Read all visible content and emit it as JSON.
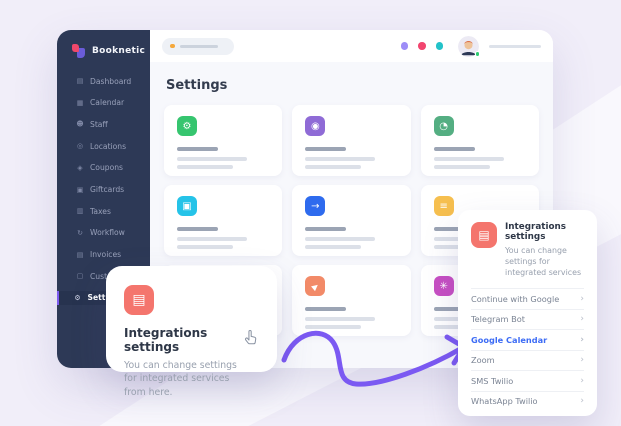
{
  "brand": {
    "name": "Booknetic"
  },
  "sidebar": {
    "items": [
      {
        "label": "Dashboard",
        "icon": "dashboard-icon",
        "glyph": "▤"
      },
      {
        "label": "Calendar",
        "icon": "calendar-icon",
        "glyph": "▦"
      },
      {
        "label": "Staff",
        "icon": "staff-icon",
        "glyph": "☻"
      },
      {
        "label": "Locations",
        "icon": "location-pin-icon",
        "glyph": "◎"
      },
      {
        "label": "Coupons",
        "icon": "coupon-icon",
        "glyph": "◈"
      },
      {
        "label": "Giftcards",
        "icon": "giftcard-icon",
        "glyph": "▣"
      },
      {
        "label": "Taxes",
        "icon": "taxes-icon",
        "glyph": "▥"
      },
      {
        "label": "Workflow",
        "icon": "workflow-icon",
        "glyph": "↻"
      },
      {
        "label": "Invoices",
        "icon": "invoice-icon",
        "glyph": "▤"
      },
      {
        "label": "Custom Forms",
        "icon": "custom-forms-icon",
        "glyph": "▢"
      },
      {
        "label": "Settings",
        "icon": "gear-icon",
        "glyph": "⚙",
        "active": true
      }
    ]
  },
  "topbar": {
    "pill_dot_color": "#f5a83c",
    "window_dots": [
      {
        "name": "dot-purple",
        "color": "#9d8df7"
      },
      {
        "name": "dot-pink",
        "color": "#f2456f"
      },
      {
        "name": "dot-teal",
        "color": "#23c2c9"
      }
    ],
    "avatar_status_color": "#2ecc71"
  },
  "page": {
    "title": "Settings"
  },
  "cards": [
    {
      "icon": "gear-icon",
      "glyph": "⚙",
      "color": "#36c56f"
    },
    {
      "icon": "key-icon",
      "glyph": "◉",
      "color": "#8f6bd6"
    },
    {
      "icon": "clock-icon",
      "glyph": "◔",
      "color": "#54ae82"
    },
    {
      "icon": "payment-card-icon",
      "glyph": "▣",
      "color": "#25c3e8"
    },
    {
      "icon": "arrow-right-icon",
      "glyph": "→",
      "color": "#2e6bee"
    },
    {
      "icon": "menu-lines-icon",
      "glyph": "≡",
      "color": "#f6bf4f"
    },
    {
      "icon": null,
      "glyph": null,
      "color": null,
      "hidden": true
    },
    {
      "icon": "send-icon",
      "glyph": "▶",
      "color": "#f28a68",
      "rotated": true
    },
    {
      "icon": "asterisk-icon",
      "glyph": "✳",
      "color": "#c74fc3"
    }
  ],
  "tooltip": {
    "icon": "document-icon",
    "title": "Integrations settings",
    "description": "You can change settings for integrated services from here."
  },
  "popup": {
    "icon": "document-icon",
    "title": "Integrations settings",
    "subtitle": "You can change settings for integrated services",
    "accent_color": "#3d6cf5",
    "chevron": "›",
    "items": [
      {
        "label": "Continue with Google"
      },
      {
        "label": "Telegram Bot"
      },
      {
        "label": "Google Calendar",
        "highlighted": true
      },
      {
        "label": "Zoom"
      },
      {
        "label": "SMS Twilio"
      },
      {
        "label": "WhatsApp Twilio"
      }
    ]
  }
}
